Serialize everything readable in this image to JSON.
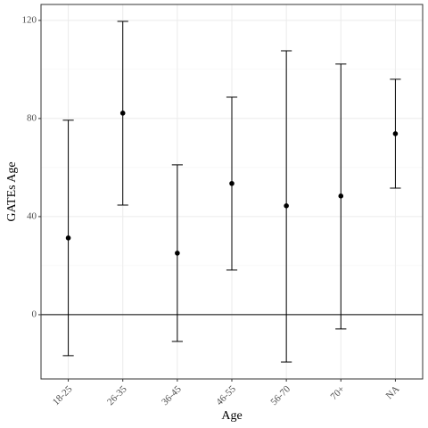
{
  "chart_data": {
    "type": "errorbar",
    "x_label": "Age",
    "y_label": "GATEs Age",
    "categories": [
      "18-25",
      "26-35",
      "36-45",
      "46-55",
      "56-70",
      "70+",
      "NA"
    ],
    "values": [
      31.3,
      82.2,
      25.1,
      53.5,
      44.4,
      48.4,
      73.8
    ],
    "lower": [
      -16.7,
      44.7,
      -10.9,
      18.2,
      -19.3,
      -5.8,
      51.6
    ],
    "upper": [
      79.3,
      119.6,
      61.1,
      88.7,
      107.6,
      102.2,
      96
    ],
    "color": "#000000",
    "ylim": [
      -26.2,
      126.5
    ],
    "yticks": [
      0,
      40,
      80,
      120
    ],
    "hline": 0,
    "grid": true
  }
}
